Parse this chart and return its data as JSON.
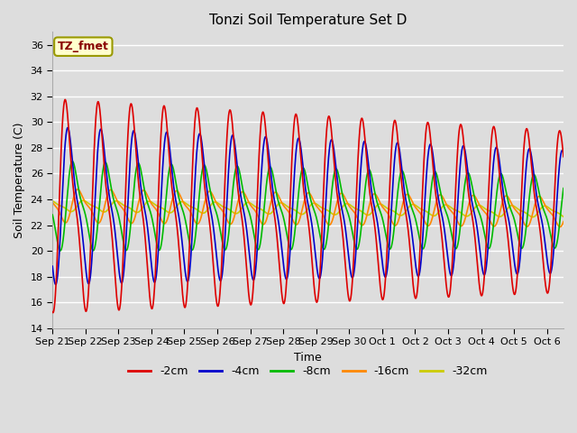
{
  "title": "Tonzi Soil Temperature Set D",
  "xlabel": "Time",
  "ylabel": "Soil Temperature (C)",
  "ylim": [
    14,
    37
  ],
  "yticks": [
    14,
    16,
    18,
    20,
    22,
    24,
    26,
    28,
    30,
    32,
    34,
    36
  ],
  "series_labels": [
    "-2cm",
    "-4cm",
    "-8cm",
    "-16cm",
    "-32cm"
  ],
  "series_colors": [
    "#dd0000",
    "#0000cc",
    "#00bb00",
    "#ff8800",
    "#cccc00"
  ],
  "annotation_text": "TZ_fmet",
  "annotation_box_color": "#ffffcc",
  "annotation_box_edgecolor": "#999900",
  "annotation_text_color": "#880000",
  "background_color": "#dddddd",
  "plot_bg_color": "#dddddd",
  "n_days": 15.5,
  "xtick_labels": [
    "Sep 21",
    "Sep 22",
    "Sep 23",
    "Sep 24",
    "Sep 25",
    "Sep 26",
    "Sep 27",
    "Sep 28",
    "Sep 29",
    "Sep 30",
    "Oct 1",
    "Oct 2",
    "Oct 3",
    "Oct 4",
    "Oct 5",
    "Oct 6"
  ],
  "figsize": [
    6.4,
    4.8
  ],
  "dpi": 100
}
